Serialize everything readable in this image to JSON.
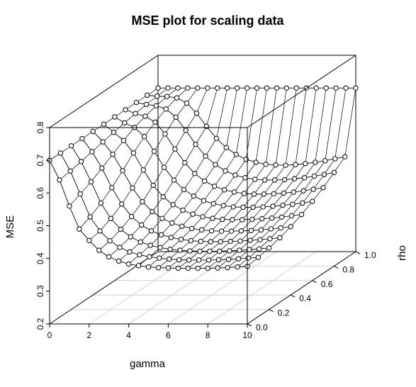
{
  "chart_data": {
    "type": "scatter3d",
    "title": "MSE plot for scaling data",
    "xlabel": "gamma",
    "ylabel": "rho",
    "zlabel": "MSE",
    "xlim": [
      0,
      10
    ],
    "ylim": [
      0,
      1
    ],
    "zlim": [
      0.2,
      0.8
    ],
    "x_ticks": [
      "0",
      "2",
      "4",
      "6",
      "8",
      "10"
    ],
    "y_ticks": [
      "0.0",
      "0.2",
      "0.4",
      "0.6",
      "0.8",
      "1.0"
    ],
    "z_ticks": [
      "0.2",
      "0.3",
      "0.4",
      "0.5",
      "0.6",
      "0.7",
      "0.8"
    ],
    "grid": true,
    "point_style": "open-circle",
    "rho": [
      0.0,
      0.1,
      0.2,
      0.3,
      0.4,
      0.5,
      0.6,
      0.7,
      0.8,
      0.9,
      1.0
    ],
    "gamma": [
      0,
      0.5,
      1,
      1.5,
      2,
      2.5,
      3,
      3.5,
      4,
      4.5,
      5,
      5.5,
      6,
      6.5,
      7,
      7.5,
      8,
      8.5,
      9,
      9.5,
      10
    ],
    "series": [
      {
        "rho": 0.0,
        "mse": [
          0.7,
          0.64,
          0.56,
          0.49,
          0.455,
          0.425,
          0.405,
          0.392,
          0.383,
          0.378,
          0.374,
          0.372,
          0.371,
          0.37,
          0.37,
          0.37,
          0.37,
          0.371,
          0.372,
          0.374,
          0.376
        ]
      },
      {
        "rho": 0.1,
        "mse": [
          0.7,
          0.645,
          0.575,
          0.505,
          0.462,
          0.432,
          0.412,
          0.398,
          0.389,
          0.383,
          0.379,
          0.376,
          0.374,
          0.373,
          0.373,
          0.373,
          0.374,
          0.375,
          0.377,
          0.379,
          0.381
        ]
      },
      {
        "rho": 0.2,
        "mse": [
          0.7,
          0.652,
          0.59,
          0.525,
          0.478,
          0.445,
          0.422,
          0.406,
          0.396,
          0.389,
          0.384,
          0.381,
          0.379,
          0.378,
          0.378,
          0.378,
          0.379,
          0.381,
          0.383,
          0.385,
          0.388
        ]
      },
      {
        "rho": 0.3,
        "mse": [
          0.7,
          0.66,
          0.61,
          0.55,
          0.5,
          0.462,
          0.436,
          0.418,
          0.406,
          0.398,
          0.392,
          0.388,
          0.386,
          0.385,
          0.385,
          0.386,
          0.387,
          0.389,
          0.391,
          0.394,
          0.397
        ]
      },
      {
        "rho": 0.4,
        "mse": [
          0.7,
          0.668,
          0.63,
          0.58,
          0.527,
          0.485,
          0.455,
          0.434,
          0.42,
          0.41,
          0.403,
          0.399,
          0.396,
          0.395,
          0.395,
          0.396,
          0.397,
          0.399,
          0.402,
          0.405,
          0.409
        ]
      },
      {
        "rho": 0.5,
        "mse": [
          0.7,
          0.675,
          0.65,
          0.612,
          0.56,
          0.513,
          0.478,
          0.454,
          0.437,
          0.425,
          0.417,
          0.412,
          0.409,
          0.408,
          0.408,
          0.409,
          0.411,
          0.413,
          0.416,
          0.42,
          0.424
        ]
      },
      {
        "rho": 0.6,
        "mse": [
          0.7,
          0.682,
          0.668,
          0.64,
          0.595,
          0.546,
          0.507,
          0.478,
          0.458,
          0.444,
          0.435,
          0.429,
          0.425,
          0.424,
          0.424,
          0.425,
          0.427,
          0.43,
          0.433,
          0.437,
          0.442
        ]
      },
      {
        "rho": 0.7,
        "mse": [
          0.7,
          0.688,
          0.68,
          0.662,
          0.626,
          0.58,
          0.538,
          0.505,
          0.482,
          0.466,
          0.455,
          0.448,
          0.444,
          0.442,
          0.442,
          0.443,
          0.445,
          0.448,
          0.452,
          0.457,
          0.462
        ]
      },
      {
        "rho": 0.8,
        "mse": [
          0.7,
          0.694,
          0.69,
          0.68,
          0.655,
          0.615,
          0.572,
          0.536,
          0.51,
          0.491,
          0.478,
          0.47,
          0.465,
          0.463,
          0.463,
          0.464,
          0.467,
          0.47,
          0.475,
          0.48,
          0.486
        ]
      },
      {
        "rho": 0.9,
        "mse": [
          0.7,
          0.697,
          0.696,
          0.692,
          0.676,
          0.645,
          0.605,
          0.568,
          0.54,
          0.519,
          0.504,
          0.495,
          0.489,
          0.487,
          0.486,
          0.488,
          0.491,
          0.495,
          0.5,
          0.506,
          0.512
        ]
      },
      {
        "rho": 1.0,
        "mse": [
          0.7,
          0.7,
          0.7,
          0.7,
          0.7,
          0.7,
          0.7,
          0.7,
          0.7,
          0.7,
          0.7,
          0.7,
          0.7,
          0.7,
          0.7,
          0.7,
          0.7,
          0.7,
          0.7,
          0.7,
          0.7
        ]
      }
    ]
  }
}
